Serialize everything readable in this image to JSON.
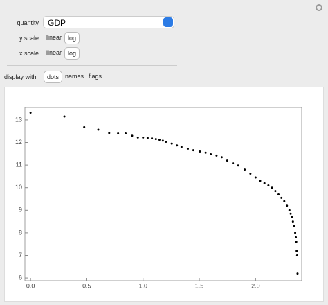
{
  "controls": {
    "quantity_label": "quantity",
    "quantity_value": "GDP",
    "y_scale_label": "y scale",
    "x_scale_label": "x scale",
    "scale_options": [
      "linear",
      "log"
    ],
    "display_label": "display with",
    "display_options": [
      "dots",
      "names",
      "flags"
    ]
  },
  "chart_data": {
    "type": "scatter",
    "color": "#000000",
    "x": [
      0,
      0.301,
      0.477,
      0.602,
      0.699,
      0.778,
      0.845,
      0.903,
      0.954,
      1.0,
      1.041,
      1.079,
      1.114,
      1.146,
      1.176,
      1.204,
      1.255,
      1.301,
      1.342,
      1.398,
      1.447,
      1.505,
      1.556,
      1.602,
      1.653,
      1.699,
      1.748,
      1.799,
      1.845,
      1.903,
      1.954,
      2.0,
      2.041,
      2.079,
      2.114,
      2.146,
      2.176,
      2.204,
      2.23,
      2.255,
      2.279,
      2.301,
      2.312,
      2.322,
      2.332,
      2.342,
      2.352,
      2.358,
      2.362,
      2.365,
      2.369,
      2.373
    ],
    "values": [
      13.32,
      13.15,
      12.68,
      12.57,
      12.42,
      12.4,
      12.4,
      12.3,
      12.22,
      12.22,
      12.2,
      12.18,
      12.15,
      12.12,
      12.08,
      12.03,
      11.95,
      11.87,
      11.8,
      11.72,
      11.66,
      11.6,
      11.55,
      11.48,
      11.42,
      11.35,
      11.2,
      11.08,
      10.98,
      10.8,
      10.62,
      10.45,
      10.3,
      10.2,
      10.1,
      10.0,
      9.85,
      9.7,
      9.55,
      9.4,
      9.2,
      9.0,
      8.85,
      8.7,
      8.5,
      8.3,
      8.0,
      7.8,
      7.6,
      7.2,
      7.0,
      6.2
    ],
    "xlim": [
      -0.05,
      2.41
    ],
    "ylim": [
      5.88,
      13.55
    ],
    "xticks": [
      {
        "value": 0,
        "label": "0.0"
      },
      0.5,
      {
        "value": 1,
        "label": "1.0"
      },
      1.5,
      {
        "value": 2,
        "label": "2.0"
      }
    ],
    "yticks": [
      6,
      7,
      8,
      9,
      10,
      11,
      12,
      13
    ]
  }
}
